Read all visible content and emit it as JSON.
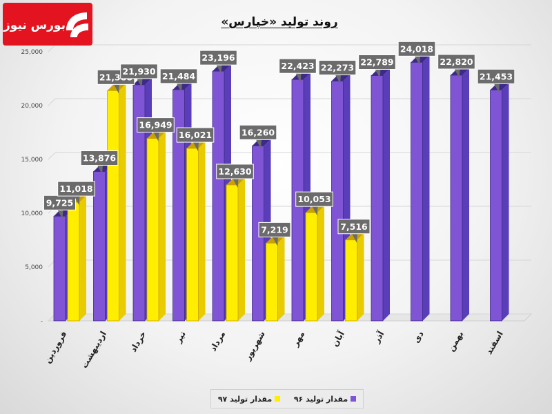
{
  "title": "روند تولید «خپارس»",
  "logo": {
    "text": "بورس نیوز",
    "bg_color": "#e3141f"
  },
  "chart_data": {
    "type": "bar",
    "title": "روند تولید «خپارس»",
    "categories": [
      "فروردین",
      "اردیبهشت",
      "خرداد",
      "تیر",
      "مرداد",
      "شهریور",
      "مهر",
      "آبان",
      "آذر",
      "دی",
      "بهمن",
      "اسفند"
    ],
    "ylim": [
      0,
      25000
    ],
    "yticks": [
      {
        "value": 0,
        "label": "-"
      },
      {
        "value": 5000,
        "label": "5,000"
      },
      {
        "value": 10000,
        "label": "10,000"
      },
      {
        "value": 15000,
        "label": "15,000"
      },
      {
        "value": 20000,
        "label": "20,000"
      },
      {
        "value": 25000,
        "label": "25,000"
      }
    ],
    "grid": true,
    "legend_position": "bottom",
    "series": [
      {
        "name": "مقدار تولید ۹۶",
        "color": "#7f55d6",
        "values": [
          9725,
          13876,
          21930,
          21484,
          23196,
          16260,
          22423,
          22273,
          22789,
          24018,
          22820,
          21453
        ],
        "labels": [
          "9,725",
          "13,876",
          "21,930",
          "21,484",
          "23,196",
          "16,260",
          "22,423",
          "22,273",
          "22,789",
          "24,018",
          "22,820",
          "21,453"
        ]
      },
      {
        "name": "مقدار تولید ۹۷",
        "color": "#ffee00",
        "values": [
          11018,
          21388,
          16949,
          16021,
          12630,
          7219,
          10053,
          7516,
          null,
          null,
          null,
          null
        ],
        "labels": [
          "11,018",
          "21,388",
          "16,949",
          "16,021",
          "12,630",
          "7,219",
          "10,053",
          "7,516",
          null,
          null,
          null,
          null
        ]
      }
    ]
  }
}
